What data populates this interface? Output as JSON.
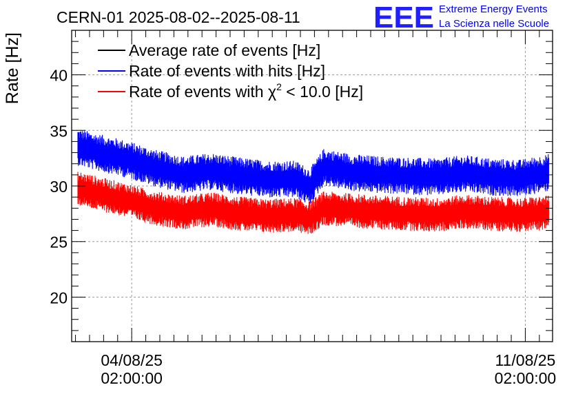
{
  "header": {
    "title": "CERN-01 2025-08-02--2025-08-11",
    "logo_text": "EEE",
    "logo_line1": "Extreme Energy Events",
    "logo_line2": "La Scienza nelle Scuole"
  },
  "chart_data": {
    "type": "line",
    "title": "CERN-01 2025-08-02--2025-08-11",
    "ylabel": "Rate [Hz]",
    "xlabel": "",
    "ylim": [
      16,
      44
    ],
    "xlim": [
      "2025-08-03T00:22:00",
      "2025-08-11T13:38:00"
    ],
    "grid": true,
    "legend_position": "top-left",
    "y_ticks": [
      20,
      25,
      30,
      35,
      40
    ],
    "x_ticks": [
      {
        "value": "2025-08-04T02:00:00",
        "date": "04/08/25",
        "time": "02:00:00"
      },
      {
        "value": "2025-08-11T02:00:00",
        "date": "11/08/25",
        "time": "02:00:00"
      }
    ],
    "series": [
      {
        "name": "Average rate of events [Hz]",
        "color": "#000000",
        "x": [],
        "values": []
      },
      {
        "name": "Rate of events with hits [Hz]",
        "color": "#0000ff",
        "x": [
          "2025-08-03T03:00:00",
          "2025-08-03T12:00:00",
          "2025-08-04T00:00:00",
          "2025-08-04T12:00:00",
          "2025-08-05T00:00:00",
          "2025-08-05T12:00:00",
          "2025-08-06T00:00:00",
          "2025-08-06T12:00:00",
          "2025-08-07T00:00:00",
          "2025-08-07T06:00:00",
          "2025-08-07T12:00:00",
          "2025-08-08T00:00:00",
          "2025-08-08T12:00:00",
          "2025-08-09T00:00:00",
          "2025-08-09T12:00:00",
          "2025-08-10T00:00:00",
          "2025-08-10T12:00:00",
          "2025-08-11T00:00:00",
          "2025-08-11T12:00:00"
        ],
        "values": [
          33.5,
          33.0,
          32.4,
          31.6,
          31.0,
          31.3,
          30.9,
          30.6,
          30.6,
          29.9,
          31.7,
          31.2,
          31.0,
          30.9,
          30.8,
          31.1,
          30.8,
          30.7,
          31.2
        ],
        "band_halfwidth": 1.2
      },
      {
        "name": "Rate of events with χ² < 10.0 [Hz]",
        "name_main": "Rate of events with χ",
        "name_sup": "2",
        "name_tail": " < 10.0 [Hz]",
        "color": "#ff0000",
        "x": [
          "2025-08-03T03:00:00",
          "2025-08-03T12:00:00",
          "2025-08-04T00:00:00",
          "2025-08-04T12:00:00",
          "2025-08-05T00:00:00",
          "2025-08-05T12:00:00",
          "2025-08-06T00:00:00",
          "2025-08-06T12:00:00",
          "2025-08-07T00:00:00",
          "2025-08-07T06:00:00",
          "2025-08-07T12:00:00",
          "2025-08-08T00:00:00",
          "2025-08-08T12:00:00",
          "2025-08-09T00:00:00",
          "2025-08-09T12:00:00",
          "2025-08-10T00:00:00",
          "2025-08-10T12:00:00",
          "2025-08-11T00:00:00",
          "2025-08-11T12:00:00"
        ],
        "values": [
          29.8,
          29.3,
          28.7,
          28.0,
          27.6,
          27.9,
          27.5,
          27.3,
          27.4,
          27.1,
          28.0,
          27.8,
          27.6,
          27.5,
          27.4,
          27.7,
          27.5,
          27.4,
          27.6
        ],
        "band_halfwidth": 1.1
      }
    ]
  }
}
